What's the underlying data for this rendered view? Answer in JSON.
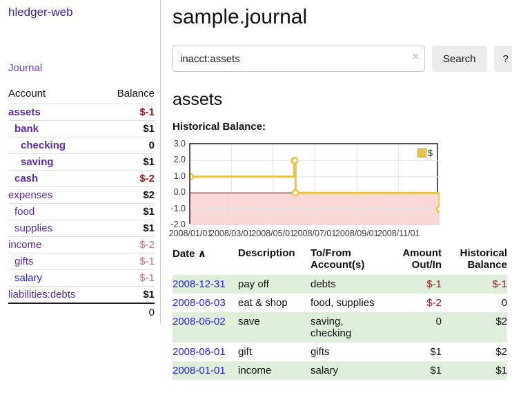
{
  "app": {
    "title": "hledger-web",
    "nav": {
      "journal": "Journal"
    }
  },
  "sidebar": {
    "headers": {
      "account": "Account",
      "balance": "Balance"
    },
    "accounts": [
      {
        "name": "assets",
        "indent": 1,
        "bold": true,
        "blue": false,
        "balance": "$-1",
        "balance_style": "neg-strong"
      },
      {
        "name": "bank",
        "indent": 2,
        "bold": true,
        "blue": false,
        "balance": "$1",
        "balance_style": "pos"
      },
      {
        "name": "checking",
        "indent": 3,
        "bold": true,
        "blue": false,
        "balance": "0",
        "balance_style": "pos"
      },
      {
        "name": "saving",
        "indent": 3,
        "bold": true,
        "blue": false,
        "balance": "$1",
        "balance_style": "pos"
      },
      {
        "name": "cash",
        "indent": 2,
        "bold": true,
        "blue": false,
        "balance": "$-2",
        "balance_style": "neg-strong"
      },
      {
        "name": "expenses",
        "indent": 1,
        "bold": false,
        "blue": false,
        "balance": "$2",
        "balance_style": "pos"
      },
      {
        "name": "food",
        "indent": 2,
        "bold": false,
        "blue": false,
        "balance": "$1",
        "balance_style": "pos"
      },
      {
        "name": "supplies",
        "indent": 2,
        "bold": false,
        "blue": false,
        "balance": "$1",
        "balance_style": "pos"
      },
      {
        "name": "income",
        "indent": 1,
        "bold": false,
        "blue": false,
        "balance": "$-2",
        "balance_style": "neg-soft"
      },
      {
        "name": "gifts",
        "indent": 2,
        "bold": false,
        "blue": false,
        "balance": "$-1",
        "balance_style": "neg-soft"
      },
      {
        "name": "salary",
        "indent": 2,
        "bold": false,
        "blue": true,
        "balance": "$-1",
        "balance_style": "neg-soft"
      },
      {
        "name": "liabilities:debts",
        "indent": 1,
        "bold": false,
        "blue": false,
        "balance": "$1",
        "balance_style": "pos"
      }
    ],
    "total": "0"
  },
  "main": {
    "title": "sample.journal",
    "search": {
      "value": "inacct:assets",
      "clear_icon": "×",
      "button": "Search",
      "help": "?"
    },
    "account_heading": "assets",
    "chart_heading": "Historical Balance:"
  },
  "chart_data": {
    "type": "line",
    "title": "Historical Balance",
    "step": true,
    "legend_label": "$",
    "legend_position": "top-right",
    "series": [
      {
        "name": "$",
        "color": "#edc240",
        "points": [
          [
            "2008-01-01",
            1
          ],
          [
            "2008-06-01",
            2
          ],
          [
            "2008-06-02",
            2
          ],
          [
            "2008-06-03",
            0
          ],
          [
            "2008-12-31",
            -1
          ]
        ]
      }
    ],
    "x_range": [
      "2008-01-01",
      "2008-12-31"
    ],
    "ylim": [
      -2,
      3
    ],
    "y_ticks": [
      3,
      2,
      1,
      0,
      -1,
      -2
    ],
    "x_ticks": [
      {
        "label": "2008/01/01",
        "date": "2008-01-01"
      },
      {
        "label": "2008/03/01",
        "date": "2008-03-01"
      },
      {
        "label": "2008/05/01",
        "date": "2008-05-01"
      },
      {
        "label": "2008/07/01",
        "date": "2008-07-01"
      },
      {
        "label": "2008/09/01",
        "date": "2008-09-01"
      },
      {
        "label": "2008/11/01",
        "date": "2008-11-01"
      }
    ],
    "grid": true,
    "colors": {
      "line": "#edc240",
      "marker_fill": "#ffffff",
      "zero_line": "#8b0000",
      "negative_region": "#f8d7d7",
      "gridline": "#e2e2e2",
      "plot_border": "#545454"
    }
  },
  "register": {
    "headers": {
      "date": "Date",
      "description": "Description",
      "accounts": "To/From Account(s)",
      "amount": "Amount Out/In",
      "balance": "Historical Balance"
    },
    "sort_icon": "∧",
    "rows": [
      {
        "date": "2008-12-31",
        "description": "pay off",
        "accounts": "debts",
        "amount": "$-1",
        "balance": "$-1"
      },
      {
        "date": "2008-06-03",
        "description": "eat & shop",
        "accounts": "food, supplies",
        "amount": "$-2",
        "balance": "0"
      },
      {
        "date": "2008-06-02",
        "description": "save",
        "accounts": "saving, checking",
        "amount": "0",
        "balance": "$2"
      },
      {
        "date": "2008-06-01",
        "description": "gift",
        "accounts": "gifts",
        "amount": "$1",
        "balance": "$2"
      },
      {
        "date": "2008-01-01",
        "description": "income",
        "accounts": "salary",
        "amount": "$1",
        "balance": "$1"
      }
    ]
  }
}
